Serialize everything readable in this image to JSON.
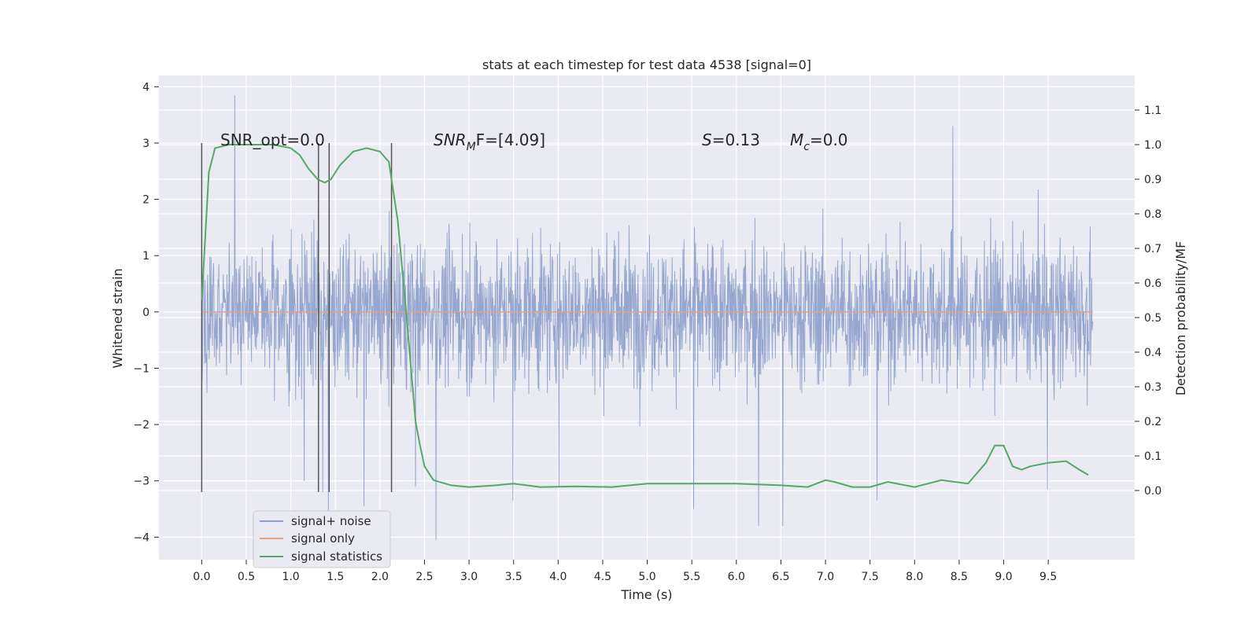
{
  "chart_data": {
    "type": "line",
    "title": "stats at each timestep for test data 4538 [signal=0]",
    "xlabel": "Time (s)",
    "ylabel_left": "Whitened strain",
    "ylabel_right": "Detection probability/MF",
    "xlim": [
      -0.48,
      10.47
    ],
    "ylim_left": [
      -4.4,
      4.2
    ],
    "ylim_right": [
      -0.2,
      1.2
    ],
    "x_ticks": [
      "0.0",
      "0.5",
      "1.0",
      "1.5",
      "2.0",
      "2.5",
      "3.0",
      "3.5",
      "4.0",
      "4.5",
      "5.0",
      "5.5",
      "6.0",
      "6.5",
      "7.0",
      "7.5",
      "8.0",
      "8.5",
      "9.0",
      "9.5"
    ],
    "y_ticks_left": [
      "4",
      "3",
      "2",
      "1",
      "0",
      "−1",
      "−2",
      "−3",
      "−4"
    ],
    "y_ticks_right": [
      "1.1",
      "1.0",
      "0.9",
      "0.8",
      "0.7",
      "0.6",
      "0.5",
      "0.4",
      "0.3",
      "0.2",
      "0.1",
      "0.0"
    ],
    "grid": true,
    "legend_position": "lower-left",
    "annotations": {
      "snr_opt": "SNR_opt=0.0",
      "snr_mf_sym": "SNR",
      "snr_mf_sub": "M",
      "snr_mf_rest": "F=[4.09]",
      "s_sym": "S",
      "s_val": "=0.13",
      "mc_sym": "M",
      "mc_sub": "c",
      "mc_val": "=0.0"
    },
    "vertical_markers_s": [
      0.0,
      1.31,
      1.43,
      2.13
    ],
    "series": [
      {
        "name": "signal+ noise",
        "color": "#8da0cb",
        "axis": "left",
        "x_range": [
          0.0,
          10.0
        ],
        "typical_band": [
          -2.4,
          2.4
        ],
        "spikes": [
          {
            "x": 0.37,
            "y": 3.85
          },
          {
            "x": 1.15,
            "y": -3.0
          },
          {
            "x": 1.36,
            "y": -3.2
          },
          {
            "x": 1.42,
            "y": -3.6
          },
          {
            "x": 1.82,
            "y": -3.45
          },
          {
            "x": 2.4,
            "y": -3.1
          },
          {
            "x": 2.63,
            "y": -4.05
          },
          {
            "x": 3.49,
            "y": -3.35
          },
          {
            "x": 4.01,
            "y": -3.1
          },
          {
            "x": 5.52,
            "y": -3.5
          },
          {
            "x": 6.25,
            "y": -3.8
          },
          {
            "x": 6.52,
            "y": -3.8
          },
          {
            "x": 7.58,
            "y": -3.35
          },
          {
            "x": 8.43,
            "y": 3.3
          },
          {
            "x": 9.49,
            "y": -3.15
          }
        ]
      },
      {
        "name": "signal only",
        "color": "#e5a183",
        "axis": "left",
        "x": [
          0.0,
          10.0
        ],
        "y": [
          0.0,
          0.0
        ]
      },
      {
        "name": "signal statistics",
        "color": "#55a868",
        "axis": "right",
        "x": [
          0.0,
          0.08,
          0.15,
          0.3,
          0.5,
          0.8,
          1.0,
          1.1,
          1.2,
          1.3,
          1.38,
          1.45,
          1.55,
          1.7,
          1.85,
          2.0,
          2.1,
          2.2,
          2.3,
          2.4,
          2.45,
          2.5,
          2.6,
          2.8,
          3.0,
          3.3,
          3.5,
          3.8,
          4.2,
          4.6,
          5.0,
          5.5,
          6.0,
          6.5,
          6.8,
          7.0,
          7.1,
          7.3,
          7.5,
          7.7,
          8.0,
          8.3,
          8.6,
          8.8,
          8.9,
          9.0,
          9.1,
          9.2,
          9.3,
          9.5,
          9.7,
          9.85,
          9.95
        ],
        "y": [
          0.55,
          0.92,
          0.99,
          1.0,
          1.0,
          1.0,
          0.99,
          0.97,
          0.93,
          0.9,
          0.89,
          0.9,
          0.94,
          0.98,
          0.99,
          0.98,
          0.95,
          0.78,
          0.5,
          0.2,
          0.13,
          0.07,
          0.03,
          0.015,
          0.01,
          0.015,
          0.02,
          0.01,
          0.012,
          0.01,
          0.02,
          0.02,
          0.02,
          0.015,
          0.01,
          0.03,
          0.025,
          0.01,
          0.01,
          0.025,
          0.01,
          0.03,
          0.02,
          0.08,
          0.13,
          0.13,
          0.07,
          0.06,
          0.07,
          0.08,
          0.085,
          0.06,
          0.045
        ]
      }
    ]
  }
}
